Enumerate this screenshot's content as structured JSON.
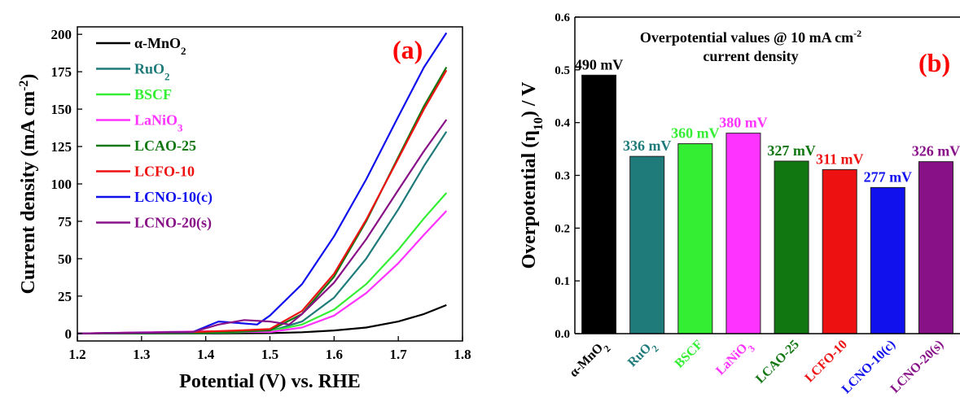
{
  "chart_data": [
    {
      "type": "line",
      "panel_label": "(a)",
      "xlabel": "Potential (V) vs. RHE",
      "ylabel": "Current density (mA cm",
      "ylabel_sup": "-2",
      "ylabel_close": ")",
      "xlim": [
        1.2,
        1.8
      ],
      "ylim": [
        -5,
        205
      ],
      "xticks": [
        "1.2",
        "1.3",
        "1.4",
        "1.5",
        "1.6",
        "1.7",
        "1.8"
      ],
      "yticks": [
        "0",
        "25",
        "50",
        "75",
        "100",
        "125",
        "150",
        "175",
        "200"
      ],
      "legend_position": "top-left",
      "series": [
        {
          "name": "α-MnO",
          "sub": "2",
          "color": "#000000",
          "x": [
            1.2,
            1.4,
            1.5,
            1.55,
            1.6,
            1.65,
            1.7,
            1.74,
            1.775
          ],
          "y": [
            0,
            0,
            0.2,
            0.8,
            2,
            4,
            8,
            13,
            19
          ]
        },
        {
          "name": "RuO",
          "sub": "2",
          "color": "#1f7a7a",
          "x": [
            1.2,
            1.4,
            1.5,
            1.55,
            1.6,
            1.65,
            1.7,
            1.74,
            1.775
          ],
          "y": [
            0,
            0.3,
            1.5,
            8,
            24,
            50,
            83,
            112,
            135
          ]
        },
        {
          "name": "BSCF",
          "sub": "",
          "color": "#33ee33",
          "x": [
            1.2,
            1.4,
            1.5,
            1.55,
            1.6,
            1.65,
            1.7,
            1.74,
            1.775
          ],
          "y": [
            0,
            0.4,
            1.5,
            6,
            16,
            33,
            56,
            77,
            94
          ]
        },
        {
          "name": "LaNiO",
          "sub": "3",
          "color": "#ff33ff",
          "x": [
            1.2,
            1.4,
            1.5,
            1.55,
            1.6,
            1.65,
            1.7,
            1.74,
            1.775
          ],
          "y": [
            0,
            1.5,
            1,
            4,
            12,
            27,
            47,
            66,
            82
          ]
        },
        {
          "name": "LCAO-25",
          "sub": "",
          "color": "#117711",
          "x": [
            1.2,
            1.4,
            1.5,
            1.55,
            1.6,
            1.65,
            1.7,
            1.74,
            1.775
          ],
          "y": [
            0,
            0.5,
            2,
            13,
            38,
            75,
            118,
            152,
            178
          ]
        },
        {
          "name": "LCFO-10",
          "sub": "",
          "color": "#ee1111",
          "x": [
            1.2,
            1.38,
            1.45,
            1.5,
            1.55,
            1.6,
            1.65,
            1.7,
            1.74,
            1.775
          ],
          "y": [
            0,
            1,
            2,
            3,
            15,
            40,
            76,
            117,
            150,
            176
          ]
        },
        {
          "name": "LCNO-10(c)",
          "sub": "",
          "color": "#1111ee",
          "x": [
            1.2,
            1.38,
            1.42,
            1.45,
            1.48,
            1.5,
            1.55,
            1.6,
            1.65,
            1.7,
            1.74,
            1.775
          ],
          "y": [
            0,
            1,
            8,
            7,
            6,
            12,
            33,
            65,
            103,
            145,
            178,
            201
          ]
        },
        {
          "name": "LCNO-20(s)",
          "sub": "",
          "color": "#881188",
          "x": [
            1.2,
            1.38,
            1.42,
            1.46,
            1.5,
            1.53,
            1.55,
            1.6,
            1.65,
            1.7,
            1.74,
            1.775
          ],
          "y": [
            0,
            1,
            6,
            9,
            8,
            6,
            13,
            34,
            63,
            96,
            122,
            143
          ]
        }
      ]
    },
    {
      "type": "bar",
      "panel_label": "(b)",
      "title_line1": "Overpotential values @ 10 mA cm",
      "title_sup": "-2",
      "title_line2": "current density",
      "ylabel_pre": "Overpotential (η",
      "ylabel_sub": "10",
      "ylabel_post": ") / V",
      "ylim": [
        0,
        0.6
      ],
      "yticks": [
        "0.0",
        "0.1",
        "0.2",
        "0.3",
        "0.4",
        "0.5",
        "0.6"
      ],
      "bars": [
        {
          "label": "α-MnO",
          "sub": "2",
          "value": 0.49,
          "value_label": "490 mV",
          "color": "#000000"
        },
        {
          "label": "RuO",
          "sub": "2",
          "value": 0.336,
          "value_label": "336 mV",
          "color": "#1f7a7a"
        },
        {
          "label": "BSCF",
          "sub": "",
          "value": 0.36,
          "value_label": "360 mV",
          "color": "#33ee33"
        },
        {
          "label": "LaNiO",
          "sub": "3",
          "value": 0.38,
          "value_label": "380 mV",
          "color": "#ff33ff"
        },
        {
          "label": "LCAO-25",
          "sub": "",
          "value": 0.327,
          "value_label": "327 mV",
          "color": "#117711"
        },
        {
          "label": "LCFO-10",
          "sub": "",
          "value": 0.311,
          "value_label": "311 mV",
          "color": "#ee1111"
        },
        {
          "label": "LCNO-10(c)",
          "sub": "",
          "value": 0.277,
          "value_label": "277 mV",
          "color": "#1111ee"
        },
        {
          "label": "LCNO-20(s)",
          "sub": "",
          "value": 0.326,
          "value_label": "326 mV",
          "color": "#881188"
        }
      ]
    }
  ]
}
